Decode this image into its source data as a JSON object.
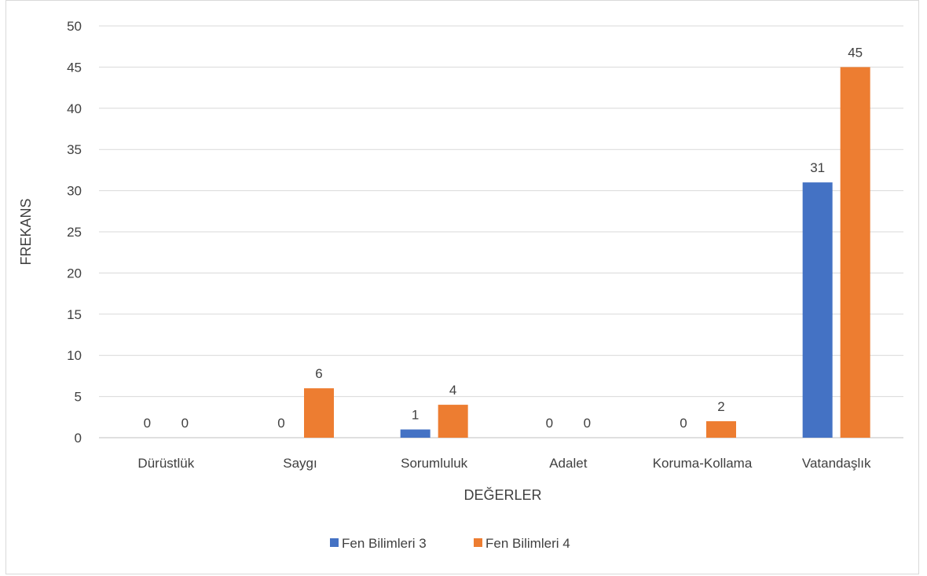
{
  "chart_data": {
    "type": "bar",
    "title": "",
    "xlabel": "DEĞERLER",
    "ylabel": "FREKANS",
    "ylim": [
      0,
      50
    ],
    "ytick_step": 5,
    "grid": true,
    "legend_position": "bottom",
    "categories": [
      "Dürüstlük",
      "Saygı",
      "Sorumluluk",
      "Adalet",
      "Koruma-Kollama",
      "Vatandaşlık"
    ],
    "series": [
      {
        "name": "Fen Bilimleri 3",
        "color": "#4472c4",
        "values": [
          0,
          0,
          1,
          0,
          0,
          31
        ]
      },
      {
        "name": "Fen Bilimleri 4",
        "color": "#ed7d31",
        "values": [
          0,
          6,
          4,
          0,
          2,
          45
        ]
      }
    ]
  }
}
